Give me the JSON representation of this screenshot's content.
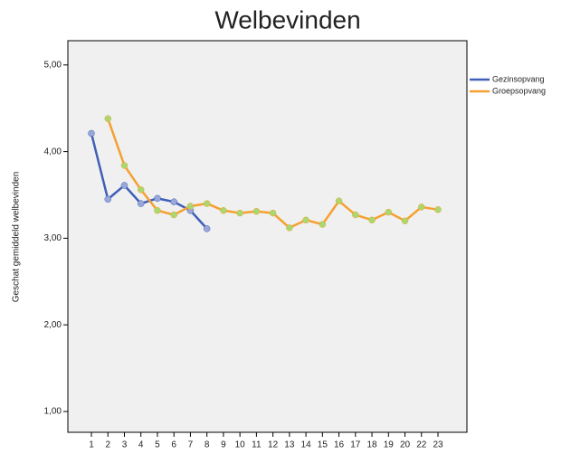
{
  "chart_data": {
    "type": "line",
    "title": "Welbevinden",
    "y_label": "Geschat gemiddeld welbevinden",
    "categories": [
      "1",
      "2",
      "3",
      "4",
      "5",
      "6",
      "7",
      "8",
      "9",
      "10",
      "11",
      "12",
      "13",
      "14",
      "15",
      "16",
      "17",
      "18",
      "19",
      "20",
      "22",
      "23"
    ],
    "series": [
      {
        "name": "Gezinsopvang",
        "color": "#3f5fb8",
        "marker_color": "#9aa8d8",
        "values": [
          4.21,
          3.45,
          3.61,
          3.4,
          3.46,
          3.42,
          3.32,
          3.11,
          null,
          null,
          null,
          null,
          null,
          null,
          null,
          null,
          null,
          null,
          null,
          null,
          null,
          null
        ]
      },
      {
        "name": "Groepsopvang",
        "color": "#f5a030",
        "marker_color": "#a8d870",
        "values": [
          null,
          4.38,
          3.84,
          3.56,
          3.32,
          3.27,
          3.37,
          3.4,
          3.32,
          3.29,
          3.31,
          3.29,
          3.12,
          3.21,
          3.16,
          3.43,
          3.27,
          3.21,
          3.3,
          3.2,
          3.36,
          3.33
        ]
      }
    ],
    "ylim": [
      0.76,
      5.28
    ],
    "yticks": [
      {
        "value": 1,
        "label": "1,00"
      },
      {
        "value": 2,
        "label": "2,00"
      },
      {
        "value": 3,
        "label": "3,00"
      },
      {
        "value": 4,
        "label": "4,00"
      },
      {
        "value": 5,
        "label": "5,00"
      }
    ],
    "legend": "right"
  }
}
